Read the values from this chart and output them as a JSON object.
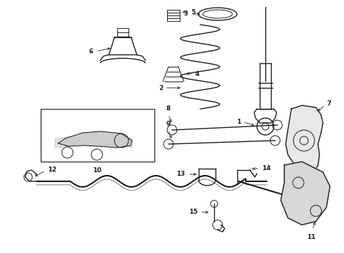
{
  "background_color": "#ffffff",
  "line_color": "#1a1a1a",
  "label_color": "#000000",
  "figsize": [
    4.9,
    3.6
  ],
  "dpi": 100,
  "lw_main": 1.0,
  "lw_thin": 0.7,
  "fs_label": 6.5
}
